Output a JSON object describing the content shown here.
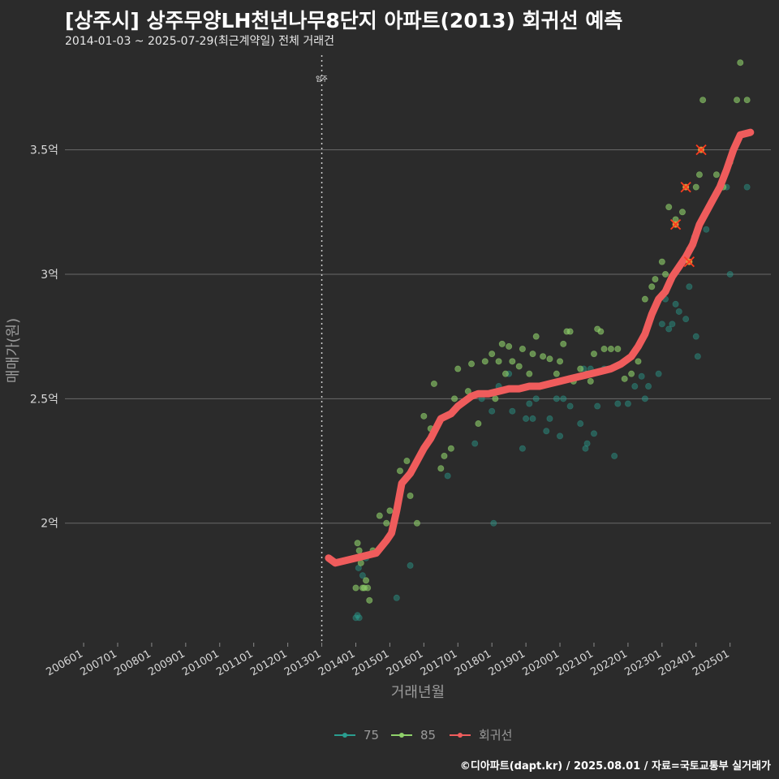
{
  "header": {
    "title": "[상주시] 상주무양LH천년나무8단지 아파트(2013) 회귀선 예측",
    "subtitle": "2014-01-03 ~ 2025-07-29(최근계약일) 전체 거래건"
  },
  "footer": {
    "caption": "©디아파트(dapt.kr) / 2025.08.01 / 자료=국토교통부 실거래가"
  },
  "chart_data": {
    "type": "scatter",
    "title": "[상주시] 상주무양LH천년나무8단지 아파트(2013) 회귀선 예측",
    "xlabel": "거래년월",
    "ylabel": "매매가(원)",
    "x_tick_labels": [
      "200601",
      "200701",
      "200801",
      "200901",
      "201001",
      "201101",
      "201201",
      "201301",
      "201401",
      "201501",
      "201601",
      "201701",
      "201801",
      "201901",
      "202001",
      "202101",
      "202201",
      "202301",
      "202401",
      "202501"
    ],
    "y_tick_labels": [
      "2억",
      "2.5억",
      "3억",
      "3.5억"
    ],
    "y_ticks": [
      2.0,
      2.5,
      3.0,
      3.5
    ],
    "ylim": [
      1.52,
      3.88
    ],
    "xlim": [
      2005.45,
      2026.2
    ],
    "grid": true,
    "annotation": {
      "label": "입주",
      "x": 2013.0
    },
    "legend": {
      "placement": "bottom",
      "items": [
        "75",
        "85",
        "회귀선"
      ]
    },
    "colors": {
      "75": "#2a9d8f",
      "85": "#8fd16a",
      "회귀선": "#ef5c5c",
      "highlight": "#ff3b1f"
    },
    "series": [
      {
        "name": "75",
        "points": [
          [
            2014.0,
            1.62
          ],
          [
            2014.05,
            1.63
          ],
          [
            2014.1,
            1.62
          ],
          [
            2014.08,
            1.82
          ],
          [
            2014.2,
            1.79
          ],
          [
            2014.3,
            1.86
          ],
          [
            2015.2,
            1.7
          ],
          [
            2015.6,
            1.83
          ],
          [
            2016.7,
            2.19
          ],
          [
            2017.5,
            2.32
          ],
          [
            2017.7,
            2.5
          ],
          [
            2018.0,
            2.45
          ],
          [
            2018.05,
            2.0
          ],
          [
            2018.2,
            2.55
          ],
          [
            2018.5,
            2.6
          ],
          [
            2018.6,
            2.45
          ],
          [
            2018.9,
            2.3
          ],
          [
            2019.0,
            2.42
          ],
          [
            2019.1,
            2.48
          ],
          [
            2019.2,
            2.42
          ],
          [
            2019.3,
            2.5
          ],
          [
            2019.6,
            2.37
          ],
          [
            2019.7,
            2.42
          ],
          [
            2019.9,
            2.5
          ],
          [
            2020.0,
            2.35
          ],
          [
            2020.1,
            2.5
          ],
          [
            2020.3,
            2.47
          ],
          [
            2020.6,
            2.4
          ],
          [
            2020.7,
            2.62
          ],
          [
            2020.75,
            2.3
          ],
          [
            2020.8,
            2.32
          ],
          [
            2020.9,
            2.62
          ],
          [
            2021.0,
            2.36
          ],
          [
            2021.1,
            2.47
          ],
          [
            2021.3,
            2.62
          ],
          [
            2021.5,
            2.62
          ],
          [
            2021.6,
            2.27
          ],
          [
            2021.7,
            2.48
          ],
          [
            2022.0,
            2.48
          ],
          [
            2022.2,
            2.55
          ],
          [
            2022.4,
            2.59
          ],
          [
            2022.5,
            2.5
          ],
          [
            2022.6,
            2.55
          ],
          [
            2022.9,
            2.6
          ],
          [
            2023.0,
            2.8
          ],
          [
            2023.1,
            2.9
          ],
          [
            2023.2,
            2.78
          ],
          [
            2023.3,
            2.8
          ],
          [
            2023.4,
            2.88
          ],
          [
            2023.5,
            2.85
          ],
          [
            2023.7,
            2.82
          ],
          [
            2023.8,
            2.95
          ],
          [
            2023.95,
            3.15
          ],
          [
            2024.0,
            2.75
          ],
          [
            2024.05,
            2.67
          ],
          [
            2024.1,
            3.2
          ],
          [
            2024.3,
            3.18
          ],
          [
            2024.9,
            3.35
          ],
          [
            2025.0,
            3.0
          ],
          [
            2025.5,
            3.35
          ]
        ]
      },
      {
        "name": "85",
        "points": [
          [
            2014.0,
            1.74
          ],
          [
            2014.05,
            1.92
          ],
          [
            2014.1,
            1.89
          ],
          [
            2014.15,
            1.84
          ],
          [
            2014.2,
            1.74
          ],
          [
            2014.25,
            1.74
          ],
          [
            2014.3,
            1.77
          ],
          [
            2014.35,
            1.74
          ],
          [
            2014.4,
            1.69
          ],
          [
            2014.5,
            1.89
          ],
          [
            2014.6,
            1.88
          ],
          [
            2014.7,
            2.03
          ],
          [
            2014.9,
            2.0
          ],
          [
            2015.0,
            2.05
          ],
          [
            2015.3,
            2.21
          ],
          [
            2015.5,
            2.25
          ],
          [
            2015.6,
            2.11
          ],
          [
            2015.8,
            2.0
          ],
          [
            2016.0,
            2.43
          ],
          [
            2016.2,
            2.38
          ],
          [
            2016.3,
            2.56
          ],
          [
            2016.5,
            2.22
          ],
          [
            2016.6,
            2.27
          ],
          [
            2016.8,
            2.3
          ],
          [
            2016.9,
            2.5
          ],
          [
            2017.0,
            2.62
          ],
          [
            2017.1,
            2.48
          ],
          [
            2017.3,
            2.53
          ],
          [
            2017.4,
            2.64
          ],
          [
            2017.6,
            2.4
          ],
          [
            2017.8,
            2.65
          ],
          [
            2018.0,
            2.68
          ],
          [
            2018.1,
            2.5
          ],
          [
            2018.2,
            2.65
          ],
          [
            2018.3,
            2.72
          ],
          [
            2018.4,
            2.6
          ],
          [
            2018.5,
            2.71
          ],
          [
            2018.6,
            2.65
          ],
          [
            2018.8,
            2.63
          ],
          [
            2018.9,
            2.7
          ],
          [
            2019.1,
            2.6
          ],
          [
            2019.2,
            2.68
          ],
          [
            2019.3,
            2.75
          ],
          [
            2019.5,
            2.67
          ],
          [
            2019.7,
            2.66
          ],
          [
            2019.9,
            2.6
          ],
          [
            2020.0,
            2.65
          ],
          [
            2020.1,
            2.72
          ],
          [
            2020.2,
            2.77
          ],
          [
            2020.3,
            2.77
          ],
          [
            2020.4,
            2.57
          ],
          [
            2020.6,
            2.62
          ],
          [
            2020.8,
            2.6
          ],
          [
            2020.9,
            2.57
          ],
          [
            2021.0,
            2.68
          ],
          [
            2021.1,
            2.78
          ],
          [
            2021.2,
            2.77
          ],
          [
            2021.3,
            2.7
          ],
          [
            2021.5,
            2.7
          ],
          [
            2021.7,
            2.7
          ],
          [
            2021.9,
            2.58
          ],
          [
            2022.1,
            2.6
          ],
          [
            2022.3,
            2.65
          ],
          [
            2022.5,
            2.9
          ],
          [
            2022.7,
            2.95
          ],
          [
            2022.8,
            2.98
          ],
          [
            2023.0,
            3.05
          ],
          [
            2023.1,
            3.0
          ],
          [
            2023.2,
            3.27
          ],
          [
            2023.4,
            3.22
          ],
          [
            2023.6,
            3.25
          ],
          [
            2023.8,
            3.1
          ],
          [
            2023.9,
            3.12
          ],
          [
            2024.0,
            3.35
          ],
          [
            2024.1,
            3.4
          ],
          [
            2024.2,
            3.7
          ],
          [
            2024.6,
            3.4
          ],
          [
            2024.8,
            3.35
          ],
          [
            2025.0,
            3.45
          ],
          [
            2025.2,
            3.7
          ],
          [
            2025.3,
            3.85
          ],
          [
            2025.5,
            3.7
          ]
        ]
      },
      {
        "name": "회귀선",
        "points": [
          [
            2013.2,
            1.86
          ],
          [
            2013.4,
            1.84
          ],
          [
            2013.7,
            1.85
          ],
          [
            2014.0,
            1.86
          ],
          [
            2014.3,
            1.87
          ],
          [
            2014.6,
            1.88
          ],
          [
            2014.9,
            1.93
          ],
          [
            2015.05,
            1.96
          ],
          [
            2015.2,
            2.05
          ],
          [
            2015.35,
            2.16
          ],
          [
            2015.6,
            2.2
          ],
          [
            2015.8,
            2.25
          ],
          [
            2016.0,
            2.3
          ],
          [
            2016.2,
            2.34
          ],
          [
            2016.35,
            2.38
          ],
          [
            2016.5,
            2.42
          ],
          [
            2016.8,
            2.44
          ],
          [
            2017.0,
            2.47
          ],
          [
            2017.2,
            2.49
          ],
          [
            2017.4,
            2.51
          ],
          [
            2017.6,
            2.52
          ],
          [
            2017.9,
            2.52
          ],
          [
            2018.2,
            2.53
          ],
          [
            2018.5,
            2.54
          ],
          [
            2018.8,
            2.54
          ],
          [
            2019.1,
            2.55
          ],
          [
            2019.4,
            2.55
          ],
          [
            2019.7,
            2.56
          ],
          [
            2020.0,
            2.57
          ],
          [
            2020.3,
            2.58
          ],
          [
            2020.6,
            2.59
          ],
          [
            2020.9,
            2.6
          ],
          [
            2021.2,
            2.61
          ],
          [
            2021.5,
            2.62
          ],
          [
            2021.8,
            2.64
          ],
          [
            2022.1,
            2.67
          ],
          [
            2022.3,
            2.71
          ],
          [
            2022.5,
            2.76
          ],
          [
            2022.7,
            2.84
          ],
          [
            2022.9,
            2.9
          ],
          [
            2023.1,
            2.93
          ],
          [
            2023.3,
            2.99
          ],
          [
            2023.5,
            3.03
          ],
          [
            2023.7,
            3.07
          ],
          [
            2023.9,
            3.12
          ],
          [
            2024.1,
            3.2
          ],
          [
            2024.3,
            3.25
          ],
          [
            2024.5,
            3.3
          ],
          [
            2024.7,
            3.35
          ],
          [
            2024.9,
            3.42
          ],
          [
            2025.1,
            3.5
          ],
          [
            2025.3,
            3.56
          ],
          [
            2025.6,
            3.57
          ]
        ]
      }
    ],
    "highlighted_points": [
      [
        2023.4,
        3.2
      ],
      [
        2023.7,
        3.35
      ],
      [
        2024.15,
        3.5
      ],
      [
        2023.8,
        3.05
      ]
    ]
  }
}
